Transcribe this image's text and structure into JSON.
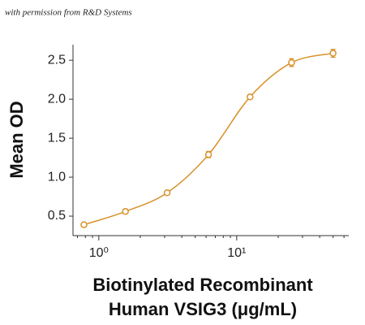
{
  "note": "with permission from R&D Systems",
  "chart_data": {
    "type": "scatter",
    "x_label": [
      "Biotinylated Recombinant",
      "Human VSIG3 (μg/mL)"
    ],
    "y_label": "Mean OD",
    "x": [
      0.78,
      1.56,
      3.13,
      6.25,
      12.5,
      25,
      50
    ],
    "series": [
      {
        "color": "#d9912a",
        "values": [
          0.39,
          0.56,
          0.8,
          1.29,
          2.03,
          2.47,
          2.59
        ],
        "errors": [
          0.02,
          0.03,
          0.02,
          0.04,
          0.02,
          0.05,
          0.05
        ]
      }
    ],
    "xscale": "log",
    "fit_curve": true,
    "xlim": [
      0.65,
      65
    ],
    "ylim": [
      0.25,
      2.7
    ],
    "xticks": [
      {
        "value": 1,
        "label": "10⁰"
      },
      {
        "value": 10,
        "label": "10¹"
      }
    ],
    "xminorticks": [
      0.7,
      0.8,
      0.9,
      2,
      3,
      4,
      5,
      6,
      7,
      8,
      9,
      20,
      30,
      40,
      50,
      60
    ],
    "yticks": [
      0.5,
      {
        "value": 1,
        "label": "1.0"
      },
      1.5,
      {
        "value": 2,
        "label": "2.0"
      },
      2.5
    ],
    "grid": false
  }
}
